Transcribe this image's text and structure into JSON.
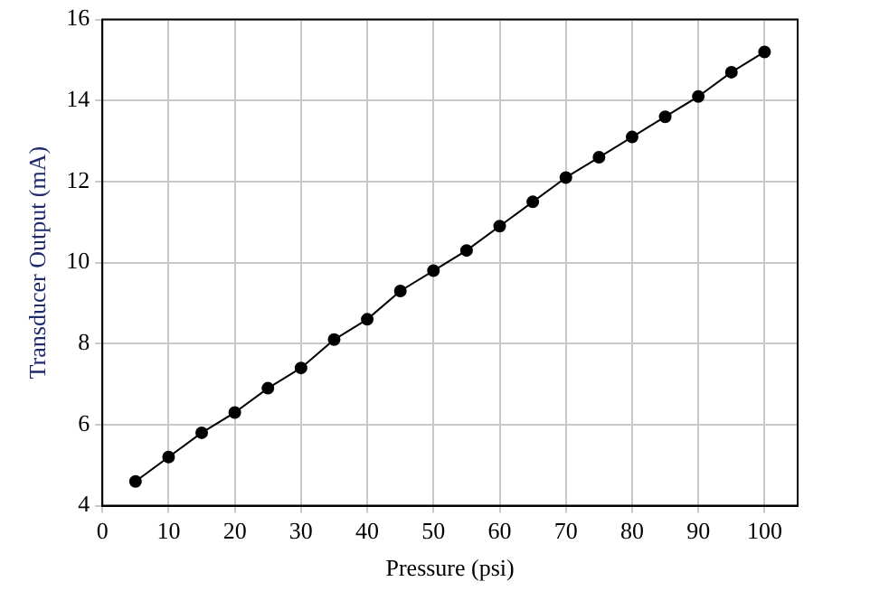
{
  "chart_data": {
    "type": "line",
    "xlabel": "Pressure (psi)",
    "ylabel": "Transducer Output (mA)",
    "x": [
      5,
      10,
      15,
      20,
      25,
      30,
      35,
      40,
      45,
      50,
      55,
      60,
      65,
      70,
      75,
      80,
      85,
      90,
      95,
      100
    ],
    "series": [
      {
        "color": "#000000",
        "values": [
          4.6,
          5.2,
          5.8,
          6.3,
          6.9,
          7.4,
          8.1,
          8.6,
          9.3,
          9.8,
          10.3,
          10.9,
          11.5,
          12.1,
          12.6,
          13.1,
          13.6,
          14.1,
          14.7,
          15.2
        ]
      }
    ],
    "xlim": [
      0,
      105
    ],
    "xticks": [
      0,
      10,
      20,
      30,
      40,
      50,
      60,
      70,
      80,
      90,
      100
    ],
    "ylim": [
      4,
      16
    ],
    "yticks": [
      4,
      6,
      8,
      10,
      12,
      14,
      16
    ],
    "grid": true,
    "legend": false,
    "marker": "circle",
    "line_style": "solid"
  }
}
